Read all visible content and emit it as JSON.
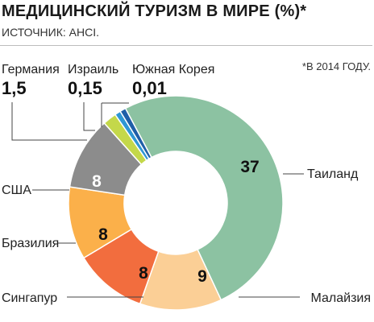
{
  "header": {
    "title": "МЕДИЦИНСКИЙ ТУРИЗМ В МИРЕ (%)*",
    "source": "ИСТОЧНИК: AHCI.",
    "note": "*В 2014 ГОДУ."
  },
  "chart_data": {
    "type": "pie",
    "title": "МЕДИЦИНСКИЙ ТУРИЗМ В МИРЕ (%)*",
    "unit": "%",
    "slices": [
      {
        "label": "Таиланд",
        "value": 37,
        "display": "37",
        "color": "#8cc2a2"
      },
      {
        "label": "Малайзия",
        "value": 9,
        "display": "9",
        "color": "#fbcf96"
      },
      {
        "label": "Сингапур",
        "value": 8,
        "display": "8",
        "color": "#f26d3e"
      },
      {
        "label": "Бразилия",
        "value": 8,
        "display": "8",
        "color": "#fbb04a"
      },
      {
        "label": "США",
        "value": 8,
        "display": "8",
        "color": "#8c8c8c"
      },
      {
        "label": "Германия",
        "value": 1.5,
        "display": "1,5",
        "color": "#c4d84a"
      },
      {
        "label": "Израиль",
        "value": 0.15,
        "display": "0,15",
        "color": "#2f97d4"
      },
      {
        "label": "Южная Корея",
        "value": 0.01,
        "display": "0,01",
        "color": "#1f5fa8"
      }
    ],
    "donut": true,
    "legend": "none"
  }
}
